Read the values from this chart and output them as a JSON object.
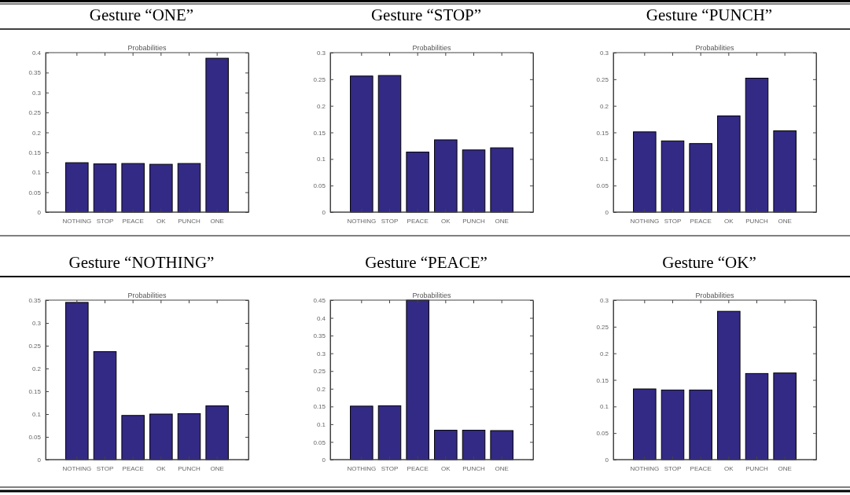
{
  "chart_data": [
    {
      "type": "bar",
      "title": "Gesture “ONE”",
      "subtitle": "Probabilities",
      "categories": [
        "NOTHING",
        "STOP",
        "PEACE",
        "OK",
        "PUNCH",
        "ONE"
      ],
      "values": [
        0.124,
        0.121,
        0.122,
        0.12,
        0.122,
        0.386
      ],
      "color": "#332a85",
      "ylim": [
        0,
        0.4
      ],
      "yticks": [
        0,
        0.05,
        0.1,
        0.15,
        0.2,
        0.25,
        0.3,
        0.35,
        0.4
      ]
    },
    {
      "type": "bar",
      "title": "Gesture “STOP”",
      "subtitle": "Probabilities",
      "categories": [
        "NOTHING",
        "STOP",
        "PEACE",
        "OK",
        "PUNCH",
        "ONE"
      ],
      "values": [
        0.256,
        0.257,
        0.113,
        0.136,
        0.117,
        0.121
      ],
      "color": "#332a85",
      "ylim": [
        0,
        0.3
      ],
      "yticks": [
        0,
        0.05,
        0.1,
        0.15,
        0.2,
        0.25,
        0.3
      ]
    },
    {
      "type": "bar",
      "title": "Gesture “PUNCH”",
      "subtitle": "Probabilities",
      "categories": [
        "NOTHING",
        "STOP",
        "PEACE",
        "OK",
        "PUNCH",
        "ONE"
      ],
      "values": [
        0.151,
        0.134,
        0.129,
        0.181,
        0.252,
        0.153
      ],
      "color": "#332a85",
      "ylim": [
        0,
        0.3
      ],
      "yticks": [
        0,
        0.05,
        0.1,
        0.15,
        0.2,
        0.25,
        0.3
      ]
    },
    {
      "type": "bar",
      "title": "Gesture “NOTHING”",
      "subtitle": "Probabilities",
      "categories": [
        "NOTHING",
        "STOP",
        "PEACE",
        "OK",
        "PUNCH",
        "ONE"
      ],
      "values": [
        0.345,
        0.237,
        0.097,
        0.1,
        0.101,
        0.118
      ],
      "color": "#332a85",
      "ylim": [
        0,
        0.35
      ],
      "yticks": [
        0,
        0.05,
        0.1,
        0.15,
        0.2,
        0.25,
        0.3,
        0.35
      ]
    },
    {
      "type": "bar",
      "title": "Gesture “PEACE”",
      "subtitle": "Probabilities",
      "categories": [
        "NOTHING",
        "STOP",
        "PEACE",
        "OK",
        "PUNCH",
        "ONE"
      ],
      "values": [
        0.151,
        0.152,
        0.45,
        0.083,
        0.083,
        0.082
      ],
      "color": "#332a85",
      "ylim": [
        0,
        0.45
      ],
      "yticks": [
        0,
        0.05,
        0.1,
        0.15,
        0.2,
        0.25,
        0.3,
        0.35,
        0.4,
        0.45
      ]
    },
    {
      "type": "bar",
      "title": "Gesture “OK”",
      "subtitle": "Probabilities",
      "categories": [
        "NOTHING",
        "STOP",
        "PEACE",
        "OK",
        "PUNCH",
        "ONE"
      ],
      "values": [
        0.133,
        0.131,
        0.131,
        0.279,
        0.162,
        0.163
      ],
      "color": "#332a85",
      "ylim": [
        0,
        0.3
      ],
      "yticks": [
        0,
        0.05,
        0.1,
        0.15,
        0.2,
        0.25,
        0.3
      ]
    }
  ]
}
